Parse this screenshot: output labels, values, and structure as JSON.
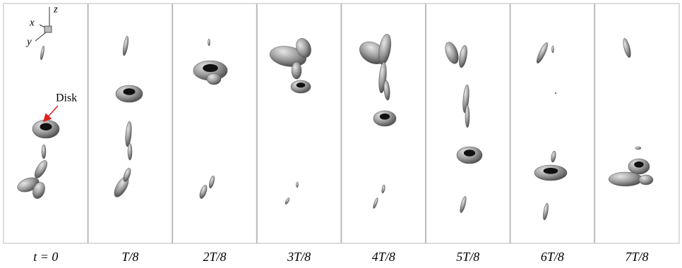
{
  "panels": [
    {
      "label": "t = 0"
    },
    {
      "label": "T/8"
    },
    {
      "label": "2T/8"
    },
    {
      "label": "3T/8"
    },
    {
      "label": "4T/8"
    },
    {
      "label": "5T/8"
    },
    {
      "label": "6T/8"
    },
    {
      "label": "7T/8"
    }
  ],
  "annotation": "Disk",
  "axes": {
    "x": "x",
    "y": "y",
    "z": "z"
  }
}
